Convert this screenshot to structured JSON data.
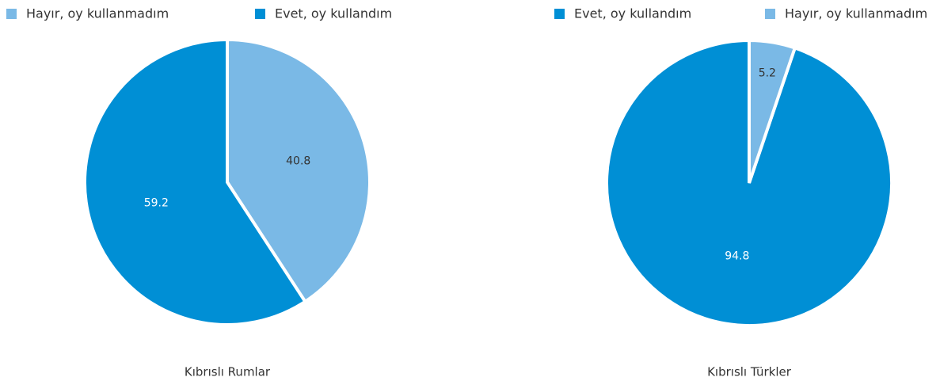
{
  "chart_data": [
    {
      "type": "pie",
      "title": "Kıbrıslı Rumlar",
      "direction": "clockwise",
      "categories": [
        "Hayır, oy kullanmadım",
        "Evet, oy kullandım"
      ],
      "values": [
        40.8,
        59.2
      ],
      "colors": [
        "#7ab9e6",
        "#008fd5"
      ]
    },
    {
      "type": "pie",
      "title": "Kıbrıslı Türkler",
      "direction": "counterclockwise",
      "categories": [
        "Evet, oy kullandım",
        "Hayır, oy kullanmadım"
      ],
      "values": [
        94.8,
        5.2
      ],
      "colors": [
        "#008fd5",
        "#7ab9e6"
      ]
    }
  ]
}
